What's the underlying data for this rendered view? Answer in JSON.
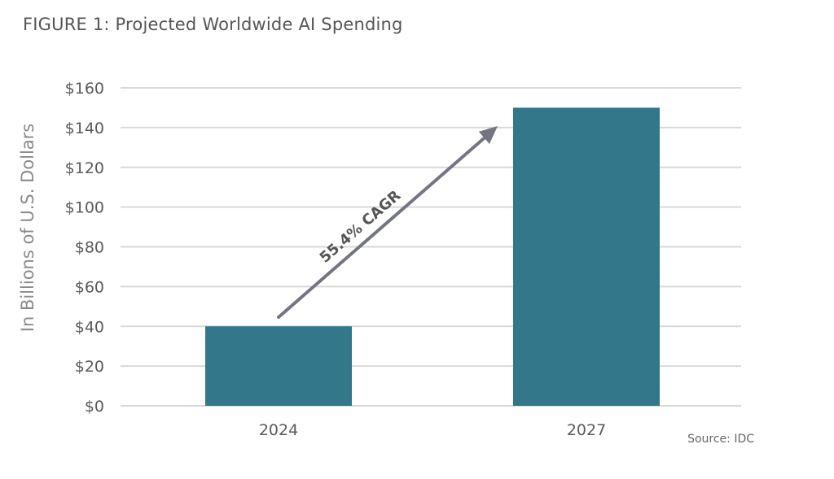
{
  "figure_title": "FIGURE 1: Projected Worldwide AI Spending",
  "source_note": "Source: IDC",
  "colors": {
    "bar": "#32778a",
    "grid": "#d9d9d9",
    "arrow": "#737580"
  },
  "chart_data": {
    "type": "bar",
    "title": "",
    "categories": [
      "2024",
      "2027"
    ],
    "values": [
      40,
      150
    ],
    "xlabel": "",
    "ylabel": "In Billions of U.S. Dollars",
    "ylim": [
      0,
      160
    ],
    "y_ticks": [
      0,
      20,
      40,
      60,
      80,
      100,
      120,
      140,
      160
    ],
    "y_tick_labels": [
      "$0",
      "$20",
      "$40",
      "$60",
      "$80",
      "$100",
      "$120",
      "$140",
      "$160"
    ],
    "grid": true,
    "annotation": {
      "text": "55.4% CAGR",
      "arrow_from_category": "2024",
      "arrow_to_category": "2027"
    }
  }
}
